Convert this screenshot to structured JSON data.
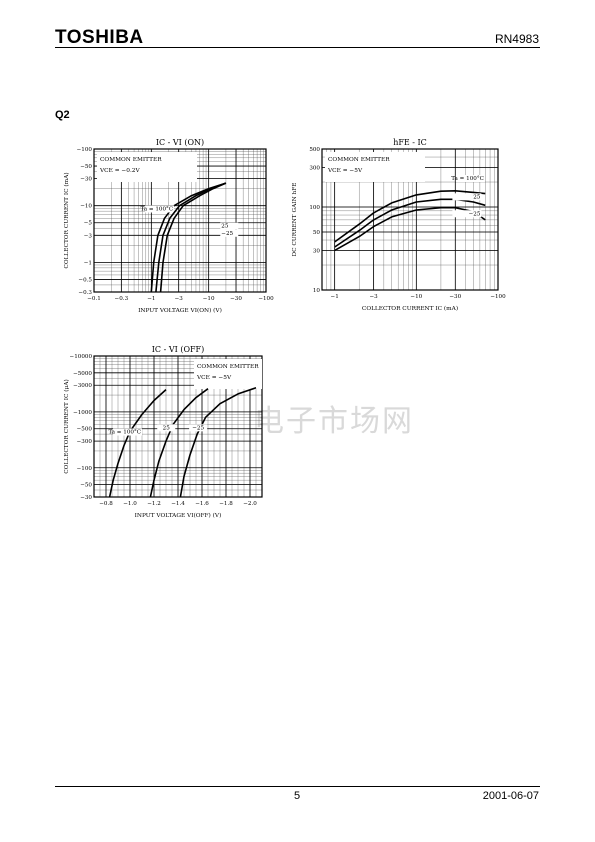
{
  "header": {
    "logo": "TOSHIBA",
    "part_number": "RN4983"
  },
  "section_label": "Q2",
  "watermark": "电子市场网",
  "footer": {
    "page": "5",
    "date": "2001-06-07"
  },
  "chart_data": [
    {
      "id": "ic-vion",
      "type": "line",
      "title": "IC - VI (ON)",
      "xlabel": "INPUT VOLTAGE  VI(ON)  (V)",
      "ylabel": "COLLECTOR CURRENT  IC  (mA)",
      "x_scale": "log",
      "y_scale": "log",
      "xlim": [
        -0.1,
        -100
      ],
      "ylim": [
        -0.3,
        -100
      ],
      "x_ticks": [
        -0.1,
        -0.3,
        -1,
        -3,
        -10,
        -30,
        -100
      ],
      "x_tick_labels": [
        "−0.1",
        "−0.3",
        "−1",
        "−3",
        "−10",
        "−30",
        "−100"
      ],
      "y_ticks": [
        -0.3,
        -0.5,
        -1,
        -3,
        -5,
        -10,
        -30,
        -50,
        -100
      ],
      "y_tick_labels": [
        "−0.3",
        "−0.5",
        "−1",
        "−3",
        "−5",
        "−10",
        "−30",
        "−50",
        "−100"
      ],
      "annotation_box": [
        "COMMON EMITTER",
        "VCE = −0.2V"
      ],
      "series": [
        {
          "label": "Ta = 100°C",
          "x": [
            -1.0,
            -1.1,
            -1.3,
            -1.7,
            -2.5,
            -5,
            -10,
            -20
          ],
          "y": [
            -0.3,
            -1,
            -3,
            -6,
            -10,
            -15,
            -20,
            -25
          ]
        },
        {
          "label": "25",
          "x": [
            -1.2,
            -1.35,
            -1.6,
            -2.1,
            -3.1,
            -6,
            -11,
            -20
          ],
          "y": [
            -0.3,
            -1,
            -3,
            -6,
            -10,
            -15,
            -20,
            -25
          ]
        },
        {
          "label": "−25",
          "x": [
            -1.45,
            -1.6,
            -1.9,
            -2.5,
            -3.6,
            -7,
            -12,
            -20
          ],
          "y": [
            -0.3,
            -1,
            -3,
            -6,
            -10,
            -15,
            -20,
            -25
          ]
        }
      ]
    },
    {
      "id": "hfe-ic",
      "type": "line",
      "title": "hFE - IC",
      "xlabel": "COLLECTOR CURRENT  IC  (mA)",
      "ylabel": "DC CURRENT GAIN  hFE",
      "x_scale": "log",
      "y_scale": "log",
      "xlim": [
        -0.7,
        -100
      ],
      "ylim": [
        10,
        500
      ],
      "x_ticks": [
        -1,
        -3,
        -10,
        -30,
        -100
      ],
      "x_tick_labels": [
        "−1",
        "−3",
        "−10",
        "−30",
        "−100"
      ],
      "y_ticks": [
        10,
        30,
        50,
        100,
        300,
        500
      ],
      "y_tick_labels": [
        "10",
        "30",
        "50",
        "100",
        "300",
        "500"
      ],
      "annotation_box": [
        "COMMON EMITTER",
        "VCE = −5V"
      ],
      "series": [
        {
          "label": "Ta = 100°C",
          "x": [
            -1,
            -2,
            -3,
            -5,
            -10,
            -20,
            -30,
            -50,
            -70
          ],
          "y": [
            38,
            62,
            85,
            112,
            140,
            155,
            157,
            150,
            145
          ]
        },
        {
          "label": "25",
          "x": [
            -1,
            -2,
            -3,
            -5,
            -10,
            -20,
            -30,
            -50,
            -70
          ],
          "y": [
            33,
            52,
            70,
            92,
            115,
            124,
            124,
            115,
            105
          ]
        },
        {
          "label": "−25",
          "x": [
            -1,
            -2,
            -3,
            -5,
            -10,
            -20,
            -30,
            -50,
            -70
          ],
          "y": [
            30,
            44,
            58,
            76,
            92,
            98,
            98,
            88,
            70
          ]
        }
      ]
    },
    {
      "id": "ic-vioff",
      "type": "line",
      "title": "IC - VI (OFF)",
      "xlabel": "INPUT VOLTAGE  VI(OFF)  (V)",
      "ylabel": "COLLECTOR CURRENT  IC  (μA)",
      "x_scale": "linear",
      "y_scale": "log",
      "xlim": [
        -0.7,
        -2.1
      ],
      "ylim": [
        -30,
        -10000
      ],
      "x_ticks": [
        -0.8,
        -1.0,
        -1.2,
        -1.4,
        -1.6,
        -1.8,
        -2.0
      ],
      "x_tick_labels": [
        "−0.8",
        "−1.0",
        "−1.2",
        "−1.4",
        "−1.6",
        "−1.8",
        "−2.0"
      ],
      "y_ticks": [
        -30,
        -50,
        -100,
        -300,
        -500,
        -1000,
        -3000,
        -5000,
        -10000
      ],
      "y_tick_labels": [
        "−30",
        "−50",
        "−100",
        "−300",
        "−500",
        "−1000",
        "−3000",
        "−5000",
        "−10000"
      ],
      "annotation_box": [
        "COMMON EMITTER",
        "VCE = −5V"
      ],
      "series": [
        {
          "label": "Ta = 100°C",
          "x": [
            -0.83,
            -0.86,
            -0.9,
            -0.95,
            -1.0,
            -1.1,
            -1.2,
            -1.3
          ],
          "y": [
            -30,
            -60,
            -120,
            -250,
            -450,
            -900,
            -1600,
            -2500
          ]
        },
        {
          "label": "25",
          "x": [
            -1.17,
            -1.2,
            -1.24,
            -1.3,
            -1.36,
            -1.45,
            -1.55,
            -1.65
          ],
          "y": [
            -30,
            -60,
            -130,
            -300,
            -600,
            -1100,
            -1800,
            -2600
          ]
        },
        {
          "label": "−25",
          "x": [
            -1.42,
            -1.45,
            -1.5,
            -1.56,
            -1.63,
            -1.75,
            -1.9,
            -2.05
          ],
          "y": [
            -30,
            -70,
            -170,
            -400,
            -800,
            -1400,
            -2100,
            -2700
          ]
        }
      ]
    }
  ]
}
